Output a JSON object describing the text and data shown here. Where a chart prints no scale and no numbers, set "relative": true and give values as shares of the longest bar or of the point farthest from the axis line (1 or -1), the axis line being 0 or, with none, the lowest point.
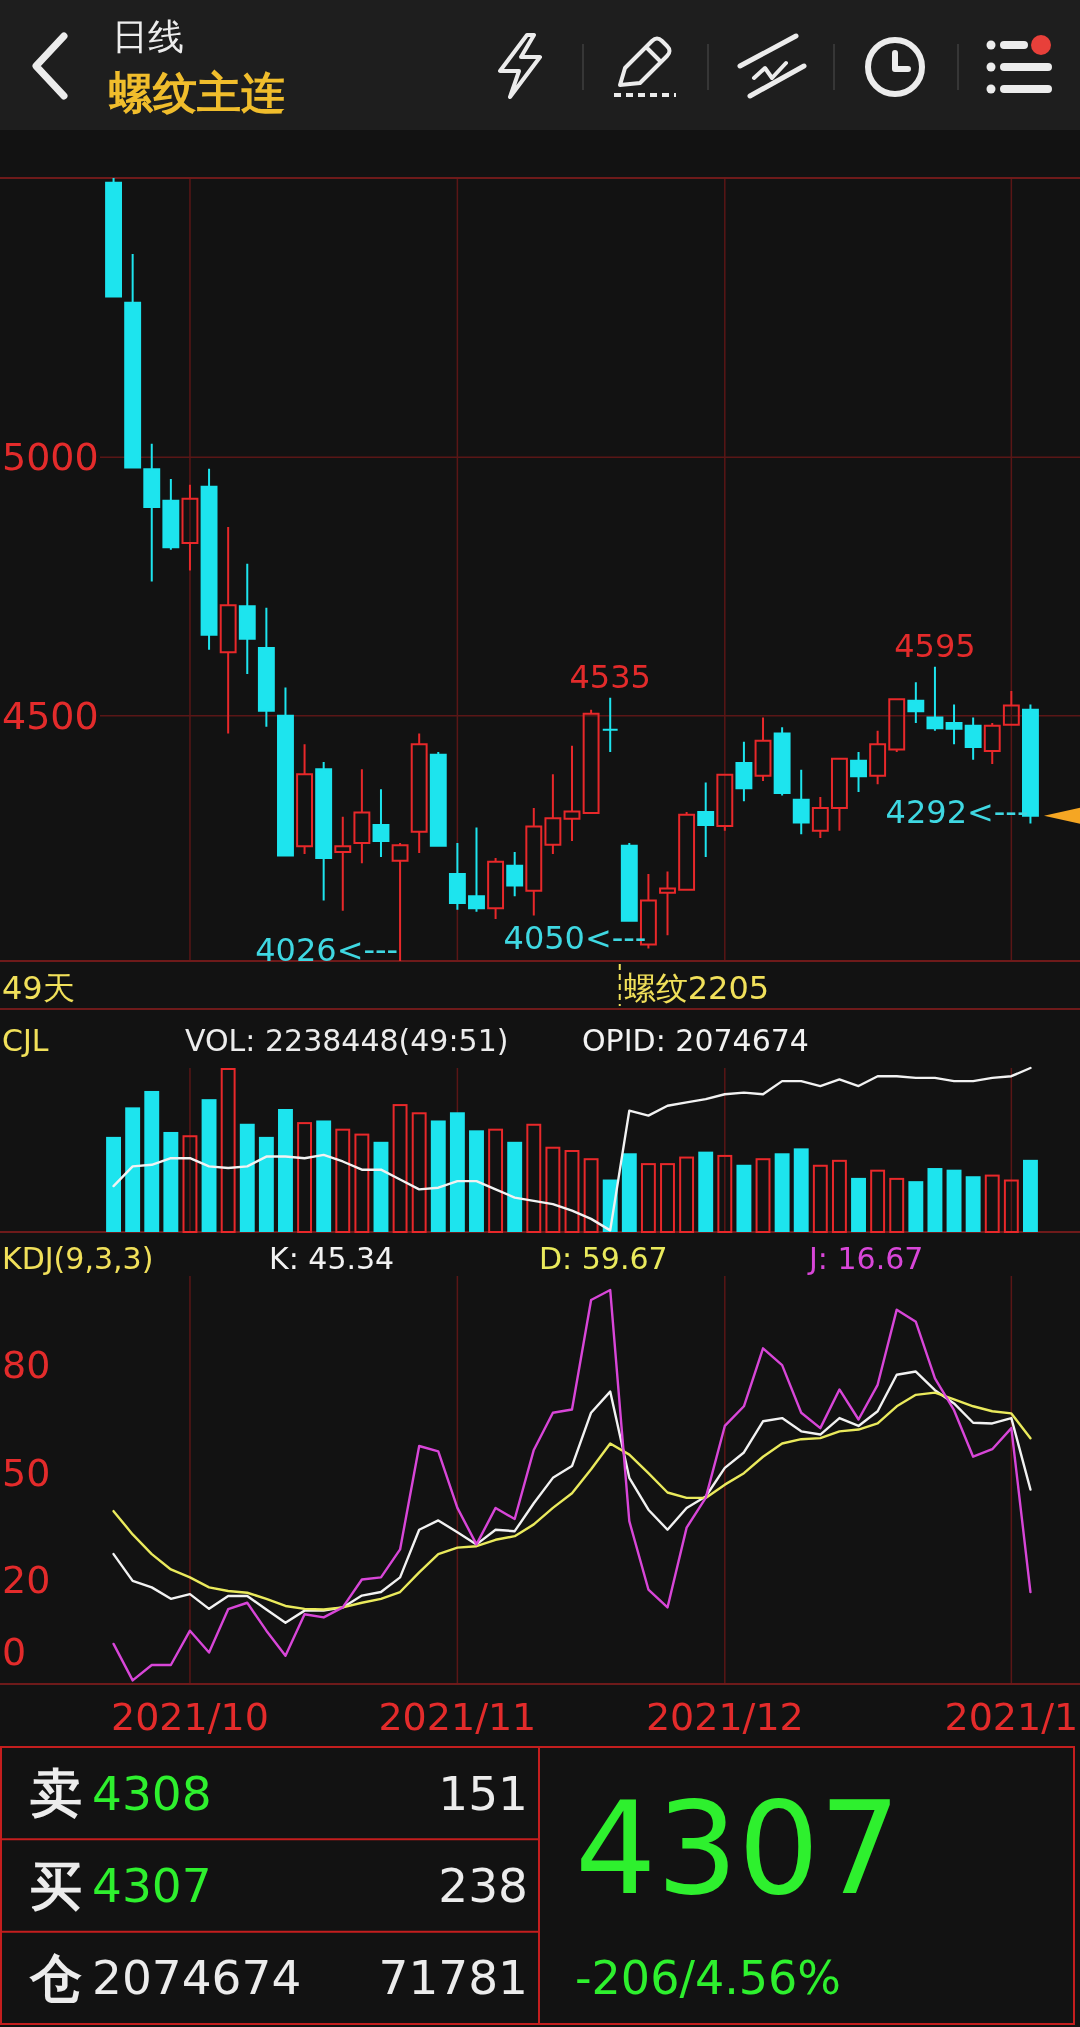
{
  "chart_data": [
    {
      "type": "candlestick",
      "title": "日线",
      "subtitle": "螺纹主连",
      "categories": [
        null,
        null,
        null,
        null,
        "2021/10",
        null,
        null,
        null,
        null,
        null,
        null,
        null,
        null,
        null,
        null,
        null,
        null,
        null,
        "2021/11",
        null,
        null,
        null,
        null,
        null,
        null,
        null,
        null,
        null,
        null,
        null,
        null,
        null,
        "2021/12",
        null,
        null,
        null,
        null,
        null,
        null,
        null,
        null,
        null,
        null,
        null,
        null,
        null,
        null,
        "2021/1",
        null
      ],
      "ohlc": [
        [
          5531,
          5540,
          5311,
          5311
        ],
        [
          5299,
          5393,
          4980,
          4980
        ],
        [
          4977,
          5026,
          4760,
          4904
        ],
        [
          4916,
          4958,
          4821,
          4826
        ],
        [
          4834,
          4947,
          4781,
          4920
        ],
        [
          4943,
          4978,
          4628,
          4657
        ],
        [
          4623,
          4865,
          4466,
          4714
        ],
        [
          4712,
          4794,
          4581,
          4649
        ],
        [
          4631,
          4709,
          4479,
          4510
        ],
        [
          4500,
          4555,
          4230,
          4230
        ],
        [
          4248,
          4445,
          4233,
          4387
        ],
        [
          4397,
          4411,
          4143,
          4225
        ],
        [
          4237,
          4305,
          4123,
          4248
        ],
        [
          4254,
          4397,
          4215,
          4313
        ],
        [
          4289,
          4358,
          4227,
          4258
        ],
        [
          4220,
          4254,
          4026,
          4250
        ],
        [
          4276,
          4466,
          4235,
          4445
        ],
        [
          4425,
          4430,
          4248,
          4249
        ],
        [
          4194,
          4254,
          4125,
          4138
        ],
        [
          4151,
          4284,
          4121,
          4128
        ],
        [
          4128,
          4225,
          4107,
          4218
        ],
        [
          4210,
          4237,
          4151,
          4172
        ],
        [
          4162,
          4322,
          4114,
          4286
        ],
        [
          4251,
          4387,
          4233,
          4302
        ],
        [
          4301,
          4442,
          4258,
          4315
        ],
        [
          4312,
          4512,
          4312,
          4504
        ],
        [
          4473,
          4535,
          4430,
          4473
        ],
        [
          4249,
          4254,
          4102,
          4104
        ],
        [
          4058,
          4194,
          4050,
          4143
        ],
        [
          4158,
          4199,
          4076,
          4166
        ],
        [
          4164,
          4314,
          4162,
          4309
        ],
        [
          4314,
          4371,
          4227,
          4289
        ],
        [
          4287,
          4386,
          4278,
          4386
        ],
        [
          4409,
          4450,
          4335,
          4360
        ],
        [
          4384,
          4497,
          4374,
          4452
        ],
        [
          4466,
          4478,
          4346,
          4351
        ],
        [
          4338,
          4396,
          4271,
          4294
        ],
        [
          4278,
          4343,
          4264,
          4322
        ],
        [
          4322,
          4417,
          4278,
          4417
        ],
        [
          4413,
          4430,
          4353,
          4383
        ],
        [
          4384,
          4471,
          4368,
          4445
        ],
        [
          4435,
          4534,
          4430,
          4532
        ],
        [
          4529,
          4565,
          4486,
          4509
        ],
        [
          4497,
          4595,
          4471,
          4476
        ],
        [
          4486,
          4522,
          4445,
          4475
        ],
        [
          4481,
          4497,
          4415,
          4440
        ],
        [
          4432,
          4486,
          4407,
          4481
        ],
        [
          4483,
          4548,
          4481,
          4520
        ],
        [
          4512,
          4522,
          4292,
          4307
        ]
      ],
      "colors": [
        "#1de4ee",
        "#1de4ee",
        "#1de4ee",
        "#1de4ee",
        "#e8282a",
        "#1de4ee",
        "#e8282a",
        "#1de4ee",
        "#1de4ee",
        "#1de4ee",
        "#e8282a",
        "#1de4ee",
        "#e8282a",
        "#e8282a",
        "#1de4ee",
        "#e8282a",
        "#e8282a",
        "#1de4ee",
        "#1de4ee",
        "#1de4ee",
        "#e8282a",
        "#1de4ee",
        "#e8282a",
        "#e8282a",
        "#e8282a",
        "#e8282a",
        "#1de4ee",
        "#1de4ee",
        "#e8282a",
        "#e8282a",
        "#e8282a",
        "#1de4ee",
        "#e8282a",
        "#1de4ee",
        "#e8282a",
        "#1de4ee",
        "#1de4ee",
        "#e8282a",
        "#e8282a",
        "#1de4ee",
        "#e8282a",
        "#e8282a",
        "#1de4ee",
        "#1de4ee",
        "#1de4ee",
        "#1de4ee",
        "#e8282a",
        "#e8282a",
        "#1de4ee"
      ],
      "ylim": [
        4026,
        5540
      ],
      "yticks": [
        4500,
        5000
      ],
      "grid": true,
      "tick_labels": "y",
      "annotations": [
        {
          "text": "4535",
          "y": 4535
        },
        {
          "text": "4595",
          "y": 4595
        },
        "4026<---",
        "4050<---",
        "4292<---",
        "49天",
        "螺纹2205"
      ]
    },
    {
      "type": "bar",
      "title": "CJL",
      "relative": true,
      "tick_labels": false,
      "grid": "x",
      "legend": "top",
      "categories": [
        null,
        null,
        null,
        null,
        "2021/10",
        null,
        null,
        null,
        null,
        null,
        null,
        null,
        null,
        null,
        null,
        null,
        null,
        null,
        "2021/11",
        null,
        null,
        null,
        null,
        null,
        null,
        null,
        null,
        null,
        null,
        null,
        null,
        null,
        "2021/12",
        null,
        null,
        null,
        null,
        null,
        null,
        null,
        null,
        null,
        null,
        null,
        null,
        null,
        null,
        "2021/1",
        null
      ],
      "annotations": [
        "VOL: 2238448(49:51)"
      ],
      "series": [
        {
          "values": [
            0.58,
            0.76,
            0.86,
            0.61,
            0.59,
            0.81,
            1,
            0.66,
            0.58,
            0.75,
            0.67,
            0.68,
            0.63,
            0.6,
            0.55,
            0.78,
            0.73,
            0.68,
            0.73,
            0.62,
            0.63,
            0.55,
            0.66,
            0.52,
            0.5,
            0.45,
            0.32,
            0.48,
            0.42,
            0.42,
            0.46,
            0.49,
            0.47,
            0.41,
            0.45,
            0.48,
            0.51,
            0.41,
            0.44,
            0.33,
            0.38,
            0.33,
            0.31,
            0.39,
            0.38,
            0.34,
            0.35,
            0.32,
            0.44
          ],
          "colors": [
            "#1de4ee",
            "#1de4ee",
            "#1de4ee",
            "#1de4ee",
            "#e8282a",
            "#1de4ee",
            "#e8282a",
            "#1de4ee",
            "#1de4ee",
            "#1de4ee",
            "#e8282a",
            "#1de4ee",
            "#e8282a",
            "#e8282a",
            "#1de4ee",
            "#e8282a",
            "#e8282a",
            "#1de4ee",
            "#1de4ee",
            "#1de4ee",
            "#e8282a",
            "#1de4ee",
            "#e8282a",
            "#e8282a",
            "#e8282a",
            "#e8282a",
            "#1de4ee",
            "#1de4ee",
            "#e8282a",
            "#e8282a",
            "#e8282a",
            "#1de4ee",
            "#e8282a",
            "#1de4ee",
            "#e8282a",
            "#1de4ee",
            "#1de4ee",
            "#e8282a",
            "#e8282a",
            "#1de4ee",
            "#e8282a",
            "#e8282a",
            "#1de4ee",
            "#1de4ee",
            "#1de4ee",
            "#1de4ee",
            "#e8282a",
            "#e8282a",
            "#1de4ee"
          ]
        },
        {
          "name": "OPID: 2074674",
          "type": "line",
          "color": "#f2f2f2",
          "values": [
            0.28,
            0.4,
            0.41,
            0.45,
            0.45,
            0.4,
            0.39,
            0.4,
            0.46,
            0.46,
            0.45,
            0.47,
            0.43,
            0.38,
            0.38,
            0.32,
            0.26,
            0.27,
            0.31,
            0.31,
            0.26,
            0.21,
            0.19,
            0.17,
            0.13,
            0.08,
            0.01,
            0.74,
            0.71,
            0.77,
            0.79,
            0.81,
            0.84,
            0.85,
            0.84,
            0.92,
            0.92,
            0.89,
            0.93,
            0.89,
            0.95,
            0.95,
            0.94,
            0.94,
            0.92,
            0.92,
            0.94,
            0.95,
            1
          ]
        }
      ]
    },
    {
      "type": "line",
      "title": "KDJ(9,3,3)",
      "grid": "x",
      "legend": "top",
      "categories": [
        null,
        null,
        null,
        null,
        "2021/10",
        null,
        null,
        null,
        null,
        null,
        null,
        null,
        null,
        null,
        null,
        null,
        null,
        null,
        "2021/11",
        null,
        null,
        null,
        null,
        null,
        null,
        null,
        null,
        null,
        null,
        null,
        null,
        null,
        "2021/12",
        null,
        null,
        null,
        null,
        null,
        null,
        null,
        null,
        null,
        null,
        null,
        null,
        null,
        null,
        "2021/1",
        null
      ],
      "ylim": [
        -9,
        105
      ],
      "yticks": [
        0,
        20,
        50,
        80
      ],
      "series": [
        {
          "name": "K: 45.34",
          "color": "#f2f2f2",
          "values": [
            27.3,
            19.8,
            18,
            14.8,
            16.1,
            12,
            15.6,
            15.6,
            11.8,
            8.1,
            11.5,
            11.5,
            12.4,
            15.7,
            16.7,
            20.8,
            34.1,
            36.7,
            33.4,
            30,
            34.1,
            33.7,
            41.5,
            48.6,
            51.9,
            66.8,
            72.7,
            48.6,
            39.7,
            34.1,
            40.2,
            43.4,
            51.4,
            55.7,
            64.4,
            65.3,
            61.6,
            60.7,
            65.3,
            63.1,
            67.2,
            77.4,
            78.3,
            73.1,
            69.4,
            64,
            63.8,
            65.3,
            45.34
          ]
        },
        {
          "name": "D: 59.67",
          "color": "#eaea5c",
          "values": [
            39.3,
            32.8,
            27.3,
            23,
            20.8,
            18,
            17,
            16.5,
            14.8,
            12.8,
            12,
            11.8,
            12.4,
            13.7,
            14.8,
            16.7,
            22.2,
            27.3,
            29.1,
            29.5,
            31.3,
            32.3,
            35.6,
            40.2,
            44.3,
            51,
            58.2,
            55.1,
            49.9,
            44.5,
            43,
            43,
            46.7,
            49.9,
            54.5,
            58.2,
            59.4,
            59.7,
            61.6,
            62.1,
            63.8,
            68.6,
            71.8,
            72.4,
            70.5,
            68.6,
            67.2,
            66.6,
            59.67
          ]
        },
        {
          "name": "J: 16.67",
          "color": "#d846d8",
          "values": [
            2.2,
            -8,
            -3.7,
            -3.7,
            5.9,
            -0.2,
            11.9,
            13.7,
            5.9,
            -1.1,
            10.5,
            9.6,
            12.4,
            20.2,
            20.8,
            28.6,
            57.5,
            56,
            40.2,
            30,
            40.2,
            37.1,
            56.4,
            66.8,
            67.7,
            98.3,
            101.1,
            36.5,
            17.4,
            12.4,
            34.7,
            43,
            63.1,
            68.6,
            84.8,
            80.1,
            66.8,
            62.5,
            73.3,
            64.9,
            74.6,
            95.6,
            92.2,
            76.4,
            67.5,
            54.5,
            56.6,
            62.5,
            16.67
          ]
        }
      ]
    },
    {
      "type": "other",
      "annotations": [
        "卖",
        "4308",
        "151",
        "买",
        "4307",
        "238",
        "仓",
        "2074674",
        "71781",
        "4307",
        "-206/4.56%"
      ]
    }
  ]
}
